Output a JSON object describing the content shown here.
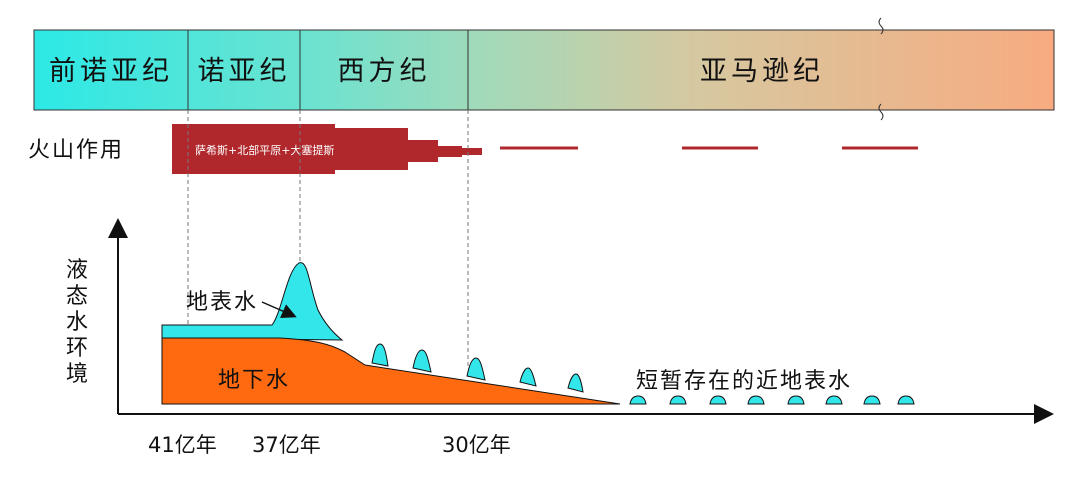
{
  "periods": [
    {
      "name": "前诺亚纪"
    },
    {
      "name": "诺亚纪"
    },
    {
      "name": "西方纪"
    },
    {
      "name": "亚马逊纪"
    }
  ],
  "volcanism": {
    "label": "火山作用",
    "bar_text": "萨希斯+北部平原+大塞提斯"
  },
  "y_axis": {
    "chars": [
      "液",
      "态",
      "水",
      "环",
      "境"
    ]
  },
  "labels": {
    "surface_water": "地表水",
    "groundwater": "地下水",
    "transient_water": "短暂存在的近地表水"
  },
  "time_ticks": [
    "41亿年",
    "37亿年",
    "30亿年"
  ],
  "colors": {
    "surface_water": "#33e6ea",
    "groundwater": "#ff6a10",
    "volcanism": "#b0282c",
    "timeline_start": "#2ce9e6",
    "timeline_end": "#f8ab80"
  }
}
